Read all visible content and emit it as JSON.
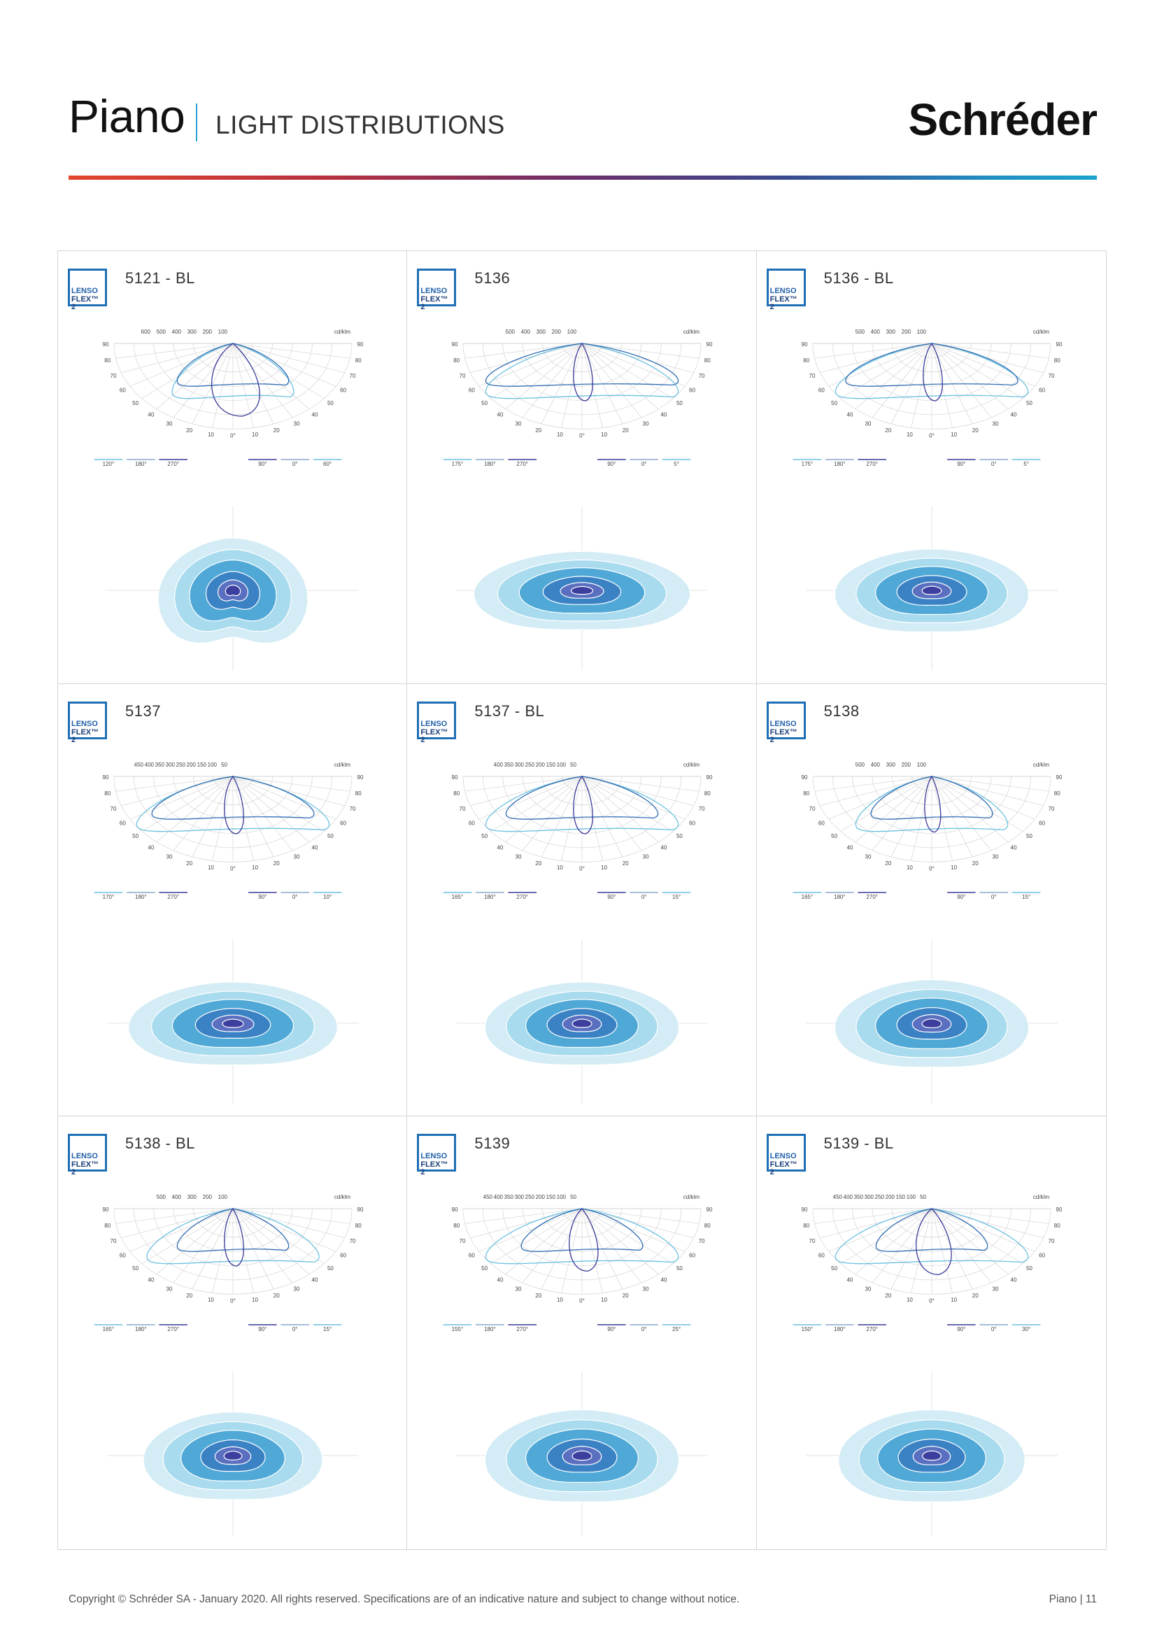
{
  "header": {
    "title": "Piano",
    "subtitle": "LIGHT DISTRIBUTIONS",
    "brand": "Schréder"
  },
  "colors": {
    "accent_sep": "#2aa3d3",
    "logo": "#1f6fb6",
    "iso_light": "#d4ecf5",
    "iso_mid1": "#a8dbee",
    "iso_mid2": "#4fa8d6",
    "iso_dark": "#3b82c4",
    "iso_core": "#3d3f9f",
    "curve_dark": "#3a3a9a",
    "curve_mid": "#2f6db3",
    "curve_light": "#6bc1e0"
  },
  "logo": {
    "line1": "LENSO",
    "line2": "FLEX™ 2"
  },
  "polar_common": {
    "unit": "cd/klm",
    "angles_outer": [
      "90",
      "80",
      "70",
      "60",
      "50",
      "40",
      "30",
      "20",
      "10"
    ],
    "zero": "0°",
    "legend_mid": [
      "180°",
      "270°",
      "90°",
      "0°"
    ]
  },
  "panels": [
    {
      "title": "5121 - BL",
      "scale": [
        "600",
        "500",
        "400",
        "300",
        "200",
        "100"
      ],
      "legend_left": "120°",
      "legend_right": "60°"
    },
    {
      "title": "5136",
      "scale": [
        "500",
        "400",
        "300",
        "200",
        "100"
      ],
      "legend_left": "175°",
      "legend_right": "5°"
    },
    {
      "title": "5136 - BL",
      "scale": [
        "500",
        "400",
        "300",
        "200",
        "100"
      ],
      "legend_left": "175°",
      "legend_right": "5°"
    },
    {
      "title": "5137",
      "scale": [
        "450",
        "400",
        "350",
        "300",
        "250",
        "200",
        "150",
        "100",
        "50"
      ],
      "legend_left": "170°",
      "legend_right": "10°"
    },
    {
      "title": "5137 - BL",
      "scale": [
        "400",
        "350",
        "300",
        "250",
        "200",
        "150",
        "100",
        "50"
      ],
      "legend_left": "165°",
      "legend_right": "15°"
    },
    {
      "title": "5138",
      "scale": [
        "500",
        "400",
        "300",
        "200",
        "100"
      ],
      "legend_left": "165°",
      "legend_right": "15°"
    },
    {
      "title": "5138 - BL",
      "scale": [
        "500",
        "400",
        "300",
        "200",
        "100"
      ],
      "legend_left": "165°",
      "legend_right": "15°"
    },
    {
      "title": "5139",
      "scale": [
        "450",
        "400",
        "350",
        "300",
        "250",
        "200",
        "150",
        "100",
        "50"
      ],
      "legend_left": "155°",
      "legend_right": "25°"
    },
    {
      "title": "5139 - BL",
      "scale": [
        "450",
        "400",
        "350",
        "300",
        "250",
        "200",
        "150",
        "100",
        "50"
      ],
      "legend_left": "150°",
      "legend_right": "30°"
    }
  ],
  "footer": {
    "copyright": "Copyright © Schréder SA - January 2020. All rights reserved. Specifications are of an indicative nature and subject to change without notice.",
    "page": "Piano | 11"
  }
}
